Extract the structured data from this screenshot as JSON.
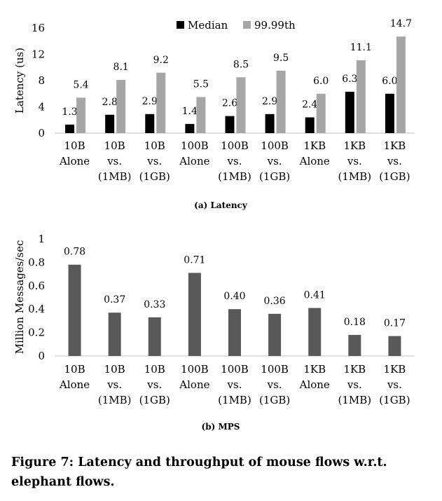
{
  "chart_data": [
    {
      "type": "bar",
      "subtitle": "(a) Latency",
      "ylabel": "Latency (us)",
      "ylim": [
        0,
        16
      ],
      "yticks": [
        0,
        4,
        8,
        12,
        16
      ],
      "legend_position": "top",
      "categories": [
        [
          "10B",
          "Alone"
        ],
        [
          "10B",
          "vs.",
          "(1MB)"
        ],
        [
          "10B",
          "vs.",
          "(1GB)"
        ],
        [
          "100B",
          "Alone"
        ],
        [
          "100B",
          "vs.",
          "(1MB)"
        ],
        [
          "100B",
          "vs.",
          "(1GB)"
        ],
        [
          "1KB",
          "Alone"
        ],
        [
          "1KB",
          "vs.",
          "(1MB)"
        ],
        [
          "1KB",
          "vs.",
          "(1GB)"
        ]
      ],
      "series": [
        {
          "name": "Median",
          "color": "#000000",
          "values": [
            1.3,
            2.8,
            2.9,
            1.4,
            2.6,
            2.9,
            2.4,
            6.3,
            6.0
          ],
          "labels": [
            "1.3",
            "2.8",
            "2.9",
            "1.4",
            "2.6",
            "2.9",
            "2.4",
            "6.3",
            "6.0"
          ]
        },
        {
          "name": "99.99th",
          "color": "#a6a6a6",
          "values": [
            5.4,
            8.1,
            9.2,
            5.5,
            8.5,
            9.5,
            6.0,
            11.1,
            14.7
          ],
          "labels": [
            "5.4",
            "8.1",
            "9.2",
            "5.5",
            "8.5",
            "9.5",
            "6.0",
            "11.1",
            "14.7"
          ]
        }
      ]
    },
    {
      "type": "bar",
      "subtitle": "(b) MPS",
      "ylabel": "Million Messages/sec",
      "ylim": [
        0,
        1
      ],
      "yticks": [
        "0",
        "0.2",
        "0.4",
        "0.6",
        "0.8",
        "1"
      ],
      "categories": [
        [
          "10B",
          "Alone"
        ],
        [
          "10B",
          "vs.",
          "(1MB)"
        ],
        [
          "10B",
          "vs.",
          "(1GB)"
        ],
        [
          "100B",
          "Alone"
        ],
        [
          "100B",
          "vs.",
          "(1MB)"
        ],
        [
          "100B",
          "vs.",
          "(1GB)"
        ],
        [
          "1KB",
          "Alone"
        ],
        [
          "1KB",
          "vs.",
          "(1MB)"
        ],
        [
          "1KB",
          "vs.",
          "(1GB)"
        ]
      ],
      "series": [
        {
          "color": "#595959",
          "values": [
            0.78,
            0.37,
            0.33,
            0.71,
            0.4,
            0.36,
            0.41,
            0.18,
            0.17
          ],
          "labels": [
            "0.78",
            "0.37",
            "0.33",
            "0.71",
            "0.40",
            "0.36",
            "0.41",
            "0.18",
            "0.17"
          ]
        }
      ]
    }
  ],
  "caption": "Figure 7: Latency and throughput of mouse flows w.r.t. elephant flows."
}
